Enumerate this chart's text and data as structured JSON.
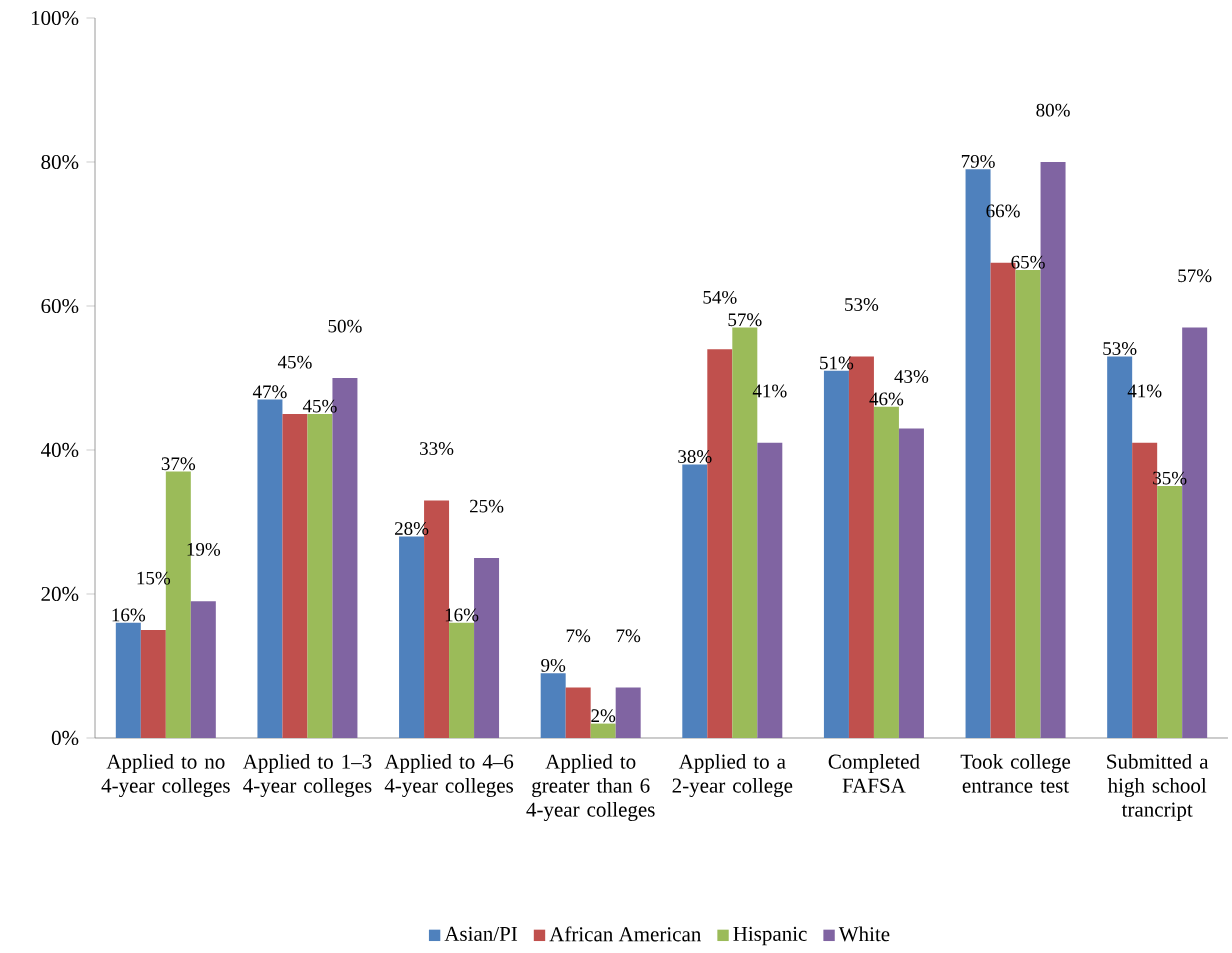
{
  "chart_data": {
    "type": "bar",
    "categories": [
      "Applied to no 4-year colleges",
      "Applied to 1–3 4-year colleges",
      "Applied to 4–6 4-year colleges",
      "Applied to greater than 6 4-year colleges",
      "Applied to a 2-year college",
      "Completed FAFSA",
      "Took college entrance test",
      "Submitted a high school trancript"
    ],
    "series": [
      {
        "name": "Asian/PI",
        "color": "#4f81bd",
        "values": [
          16,
          47,
          28,
          9,
          38,
          51,
          79,
          53
        ],
        "value_labels": [
          "16%",
          "47%",
          "28%",
          "9%",
          "38%",
          "51%",
          "79%",
          "53%"
        ]
      },
      {
        "name": "African American",
        "color": "#c0504d",
        "values": [
          15,
          45,
          33,
          7,
          54,
          53,
          66,
          41
        ],
        "value_labels": [
          "15%",
          "45%",
          "33%",
          "7%",
          "54%",
          "53%",
          "66%",
          "41%"
        ]
      },
      {
        "name": "Hispanic",
        "color": "#9bbb59",
        "values": [
          37,
          45,
          16,
          2,
          57,
          46,
          65,
          35
        ],
        "value_labels": [
          "37%",
          "45%",
          "16%",
          "2%",
          "57%",
          "46%",
          "65%",
          "35%"
        ]
      },
      {
        "name": "White",
        "color": "#8064a2",
        "values": [
          19,
          50,
          25,
          7,
          41,
          43,
          80,
          57
        ],
        "value_labels": [
          "19%",
          "50%",
          "25%",
          "7%",
          "41%",
          "43%",
          "80%",
          "57%"
        ]
      }
    ],
    "ylim": [
      0,
      100
    ],
    "yticks": [
      {
        "value": 0,
        "label": "0%"
      },
      {
        "value": 20,
        "label": "20%"
      },
      {
        "value": 40,
        "label": "40%"
      },
      {
        "value": 60,
        "label": "60%"
      },
      {
        "value": 80,
        "label": "80%"
      },
      {
        "value": 100,
        "label": "100%"
      }
    ],
    "grid": false,
    "legend": "bottom"
  }
}
